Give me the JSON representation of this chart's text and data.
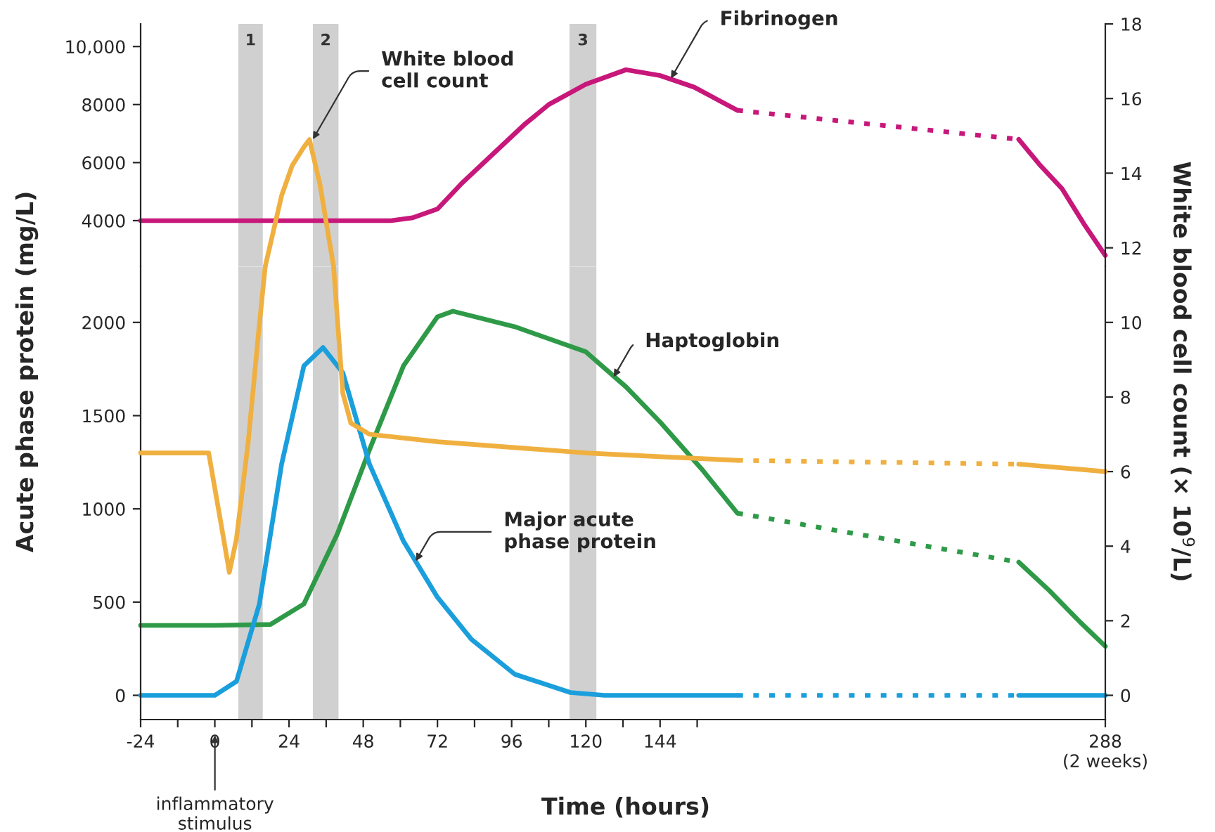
{
  "chart_data": [
    {
      "type": "line",
      "xlim": [
        -24,
        288
      ],
      "ylim": [
        2420,
        10780
      ],
      "yticks": [
        4000,
        6000,
        8000,
        {
          "value": 10000,
          "label": "10,000"
        }
      ],
      "y2lim": [
        11.5,
        18
      ],
      "y2ticks": [
        12,
        14,
        16,
        18
      ],
      "tick_labels": "y",
      "series": [
        {
          "color": "#c8177a",
          "x": [
            -24,
            0,
            24,
            48,
            57,
            64,
            72,
            80,
            90,
            100,
            108,
            120,
            133,
            144,
            155,
            169,
            260,
            267,
            274,
            281,
            288
          ],
          "values": [
            4000,
            4000,
            4000,
            4000,
            4000,
            4100,
            4400,
            5300,
            6300,
            7300,
            8000,
            8700,
            9200,
            9000,
            8600,
            7800,
            6800,
            5900,
            5100,
            3900,
            2800
          ]
        },
        {
          "color": "#f0b040",
          "axis": "y2",
          "x": [
            16.3,
            21.6,
            25,
            28.8,
            30.6,
            34,
            38.4
          ],
          "values": [
            11.5,
            13.4,
            14.2,
            14.7,
            14.9,
            13.7,
            11.5
          ]
        }
      ],
      "bands": [
        {
          "axis": "x",
          "from": 7.6,
          "to": 15.5,
          "label": "1",
          "color": "#c4c4c4"
        },
        {
          "axis": "x",
          "from": 31.7,
          "to": 40,
          "label": "2",
          "color": "#c4c4c4"
        },
        {
          "axis": "x",
          "from": 114.7,
          "to": 123.4,
          "label": "3",
          "color": "#c4c4c4"
        }
      ],
      "annotations": [
        {
          "text": "White blood\ncell count",
          "x": 31.7,
          "y": 6800
        },
        {
          "text": "Fibrinogen",
          "x": 147.5,
          "y": 8900
        }
      ]
    },
    {
      "type": "line",
      "xlim": [
        -24,
        288
      ],
      "xticks": [
        -24,
        {
          "value": -12,
          "label": null
        },
        0,
        {
          "value": 12,
          "label": null
        },
        24,
        {
          "value": 36,
          "label": null
        },
        48,
        {
          "value": 60,
          "label": null
        },
        72,
        {
          "value": 84,
          "label": null
        },
        96,
        {
          "value": 108,
          "label": null
        },
        120,
        {
          "value": 132,
          "label": null
        },
        144,
        {
          "value": 156,
          "label": null
        },
        {
          "value": 288,
          "label": "288\n(2 weeks)"
        }
      ],
      "ylim": [
        -130,
        2300
      ],
      "yticks": [
        0,
        500,
        1000,
        1500,
        2000
      ],
      "y2lim": [
        -0.65,
        11.5
      ],
      "y2ticks": [
        0,
        2,
        4,
        6,
        8,
        10
      ],
      "ylabel": "Acute phase protein (mg/L)",
      "xlabel": "Time (hours)",
      "y2label": "White blood cell count (× 10$^{9}$/L)",
      "series": [
        {
          "color": "#f0b040",
          "axis": "y2",
          "x": [
            -24,
            -2,
            1.8,
            4.7,
            7,
            10.8,
            14,
            16.3,
            28.8,
            38.4,
            41.4,
            44,
            50,
            72,
            96,
            120,
            144,
            169,
            260,
            288
          ],
          "values": [
            6.5,
            6.5,
            4.7,
            3.3,
            4.2,
            6.8,
            9.6,
            11.5,
            null,
            11.5,
            8.1,
            7.3,
            7.0,
            6.8,
            6.65,
            6.5,
            6.4,
            6.3,
            6.2,
            6.0
          ]
        },
        {
          "color": "#2e9a48",
          "x": [
            -24,
            0,
            18,
            28.8,
            39.6,
            50,
            61,
            72,
            77,
            97,
            120,
            133,
            144,
            158,
            169,
            260,
            270,
            280,
            288
          ],
          "values": [
            375,
            375,
            380,
            490,
            865,
            1316,
            1767,
            2030,
            2060,
            1977,
            1842,
            1654,
            1466,
            1203,
            977,
            714,
            560,
            390,
            263
          ]
        },
        {
          "color": "#1a9fdc",
          "x": [
            -24,
            0,
            7,
            14.4,
            21.6,
            28.8,
            35,
            41.4,
            50,
            61,
            72,
            83,
            97,
            115,
            126,
            169,
            260,
            288
          ],
          "values": [
            0,
            0,
            75,
            489,
            1240,
            1767,
            1865,
            1730,
            1240,
            827,
            526,
            300,
            113,
            15,
            0,
            0,
            0,
            0
          ]
        }
      ],
      "bands": [
        {
          "axis": "x",
          "from": 7.6,
          "to": 15.5,
          "color": "#c4c4c4"
        },
        {
          "axis": "x",
          "from": 31.7,
          "to": 40,
          "color": "#c4c4c4"
        },
        {
          "axis": "x",
          "from": 114.7,
          "to": 123.4,
          "color": "#c4c4c4"
        }
      ],
      "annotations": [
        {
          "text": "Haptoglobin",
          "x": 129,
          "y": 1707
        },
        {
          "text": "Major acute\nphase protein",
          "x": 65,
          "y": 720
        },
        "inflammatory\nstimulus"
      ]
    }
  ]
}
